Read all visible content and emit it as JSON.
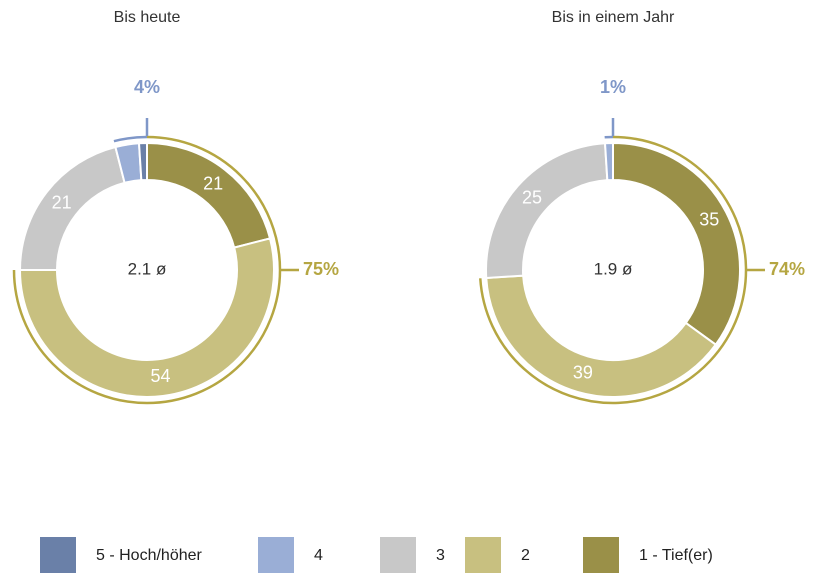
{
  "chart_data": [
    {
      "type": "donut",
      "title": "Bis heute",
      "center_label": "2.1 ø",
      "values": [
        1,
        3,
        21,
        54,
        21
      ],
      "annotations": [
        {
          "label": "75%",
          "color": "#b5a642"
        },
        {
          "label": "4%",
          "color": "#7f97c8"
        }
      ]
    },
    {
      "type": "donut",
      "title": "Bis in einem Jahr",
      "center_label": "1.9 ø",
      "values": [
        0,
        1,
        25,
        39,
        35
      ],
      "annotations": [
        {
          "label": "74%",
          "color": "#b5a642"
        },
        {
          "label": "1%",
          "color": "#7f97c8"
        }
      ]
    }
  ],
  "legend": {
    "labels": [
      "5 - Hoch/höher",
      "4",
      "3",
      "2",
      "1 - Tief(er)"
    ],
    "colors": [
      "#6a80a8",
      "#9aaed6",
      "#c8c8c8",
      "#c8c080",
      "#9a9048"
    ]
  }
}
